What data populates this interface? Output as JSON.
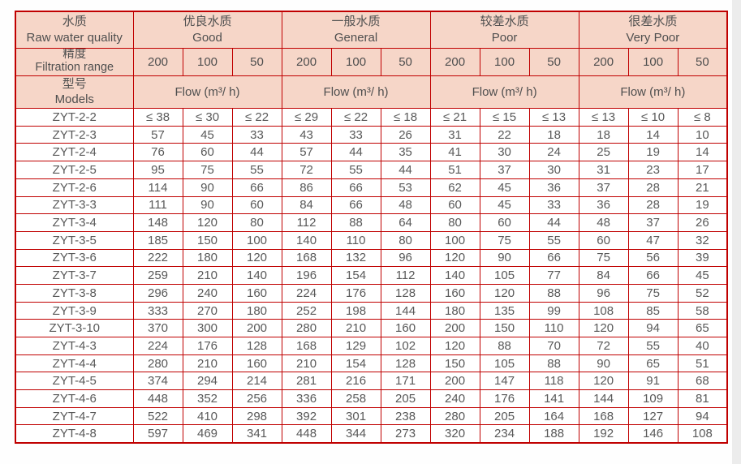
{
  "colors": {
    "border": "#c00000",
    "header_bg": "#f6d6c8",
    "data_text": "#595959",
    "header_text": "#4f4f4f",
    "scrollbar": "#ececec",
    "page_bg": "#fefefe"
  },
  "header": {
    "corner": {
      "row1": {
        "zh": "水质",
        "en": "Raw water quality"
      },
      "row2": {
        "zh": "精度",
        "en": "Filtration range"
      },
      "row3": {
        "zh": "型号",
        "en": "Models"
      }
    },
    "groups": [
      {
        "zh": "优良水质",
        "en": "Good"
      },
      {
        "zh": "一般水质",
        "en": "General"
      },
      {
        "zh": "较差水质",
        "en": "Poor"
      },
      {
        "zh": "很差水质",
        "en": "Very Poor"
      }
    ],
    "filtration_levels": [
      "200",
      "100",
      "50"
    ],
    "flow_label": "Flow (m³/ h)"
  },
  "rows": [
    {
      "model": "ZYT-2-2",
      "values": [
        "≤ 38",
        "≤ 30",
        "≤ 22",
        "≤ 29",
        "≤ 22",
        "≤ 18",
        "≤ 21",
        "≤ 15",
        "≤ 13",
        "≤ 13",
        "≤ 10",
        "≤ 8"
      ]
    },
    {
      "model": "ZYT-2-3",
      "values": [
        "57",
        "45",
        "33",
        "43",
        "33",
        "26",
        "31",
        "22",
        "18",
        "18",
        "14",
        "10"
      ]
    },
    {
      "model": "ZYT-2-4",
      "values": [
        "76",
        "60",
        "44",
        "57",
        "44",
        "35",
        "41",
        "30",
        "24",
        "25",
        "19",
        "14"
      ]
    },
    {
      "model": "ZYT-2-5",
      "values": [
        "95",
        "75",
        "55",
        "72",
        "55",
        "44",
        "51",
        "37",
        "30",
        "31",
        "23",
        "17"
      ]
    },
    {
      "model": "ZYT-2-6",
      "values": [
        "114",
        "90",
        "66",
        "86",
        "66",
        "53",
        "62",
        "45",
        "36",
        "37",
        "28",
        "21"
      ]
    },
    {
      "model": "ZYT-3-3",
      "values": [
        "111",
        "90",
        "60",
        "84",
        "66",
        "48",
        "60",
        "45",
        "33",
        "36",
        "28",
        "19"
      ]
    },
    {
      "model": "ZYT-3-4",
      "values": [
        "148",
        "120",
        "80",
        "112",
        "88",
        "64",
        "80",
        "60",
        "44",
        "48",
        "37",
        "26"
      ]
    },
    {
      "model": "ZYT-3-5",
      "values": [
        "185",
        "150",
        "100",
        "140",
        "110",
        "80",
        "100",
        "75",
        "55",
        "60",
        "47",
        "32"
      ]
    },
    {
      "model": "ZYT-3-6",
      "values": [
        "222",
        "180",
        "120",
        "168",
        "132",
        "96",
        "120",
        "90",
        "66",
        "75",
        "56",
        "39"
      ]
    },
    {
      "model": "ZYT-3-7",
      "values": [
        "259",
        "210",
        "140",
        "196",
        "154",
        "112",
        "140",
        "105",
        "77",
        "84",
        "66",
        "45"
      ]
    },
    {
      "model": "ZYT-3-8",
      "values": [
        "296",
        "240",
        "160",
        "224",
        "176",
        "128",
        "160",
        "120",
        "88",
        "96",
        "75",
        "52"
      ]
    },
    {
      "model": "ZYT-3-9",
      "values": [
        "333",
        "270",
        "180",
        "252",
        "198",
        "144",
        "180",
        "135",
        "99",
        "108",
        "85",
        "58"
      ]
    },
    {
      "model": "ZYT-3-10",
      "values": [
        "370",
        "300",
        "200",
        "280",
        "210",
        "160",
        "200",
        "150",
        "110",
        "120",
        "94",
        "65"
      ]
    },
    {
      "model": "ZYT-4-3",
      "values": [
        "224",
        "176",
        "128",
        "168",
        "129",
        "102",
        "120",
        "88",
        "70",
        "72",
        "55",
        "40"
      ]
    },
    {
      "model": "ZYT-4-4",
      "values": [
        "280",
        "210",
        "160",
        "210",
        "154",
        "128",
        "150",
        "105",
        "88",
        "90",
        "65",
        "51"
      ]
    },
    {
      "model": "ZYT-4-5",
      "values": [
        "374",
        "294",
        "214",
        "281",
        "216",
        "171",
        "200",
        "147",
        "118",
        "120",
        "91",
        "68"
      ]
    },
    {
      "model": "ZYT-4-6",
      "values": [
        "448",
        "352",
        "256",
        "336",
        "258",
        "205",
        "240",
        "176",
        "141",
        "144",
        "109",
        "81"
      ]
    },
    {
      "model": "ZYT-4-7",
      "values": [
        "522",
        "410",
        "298",
        "392",
        "301",
        "238",
        "280",
        "205",
        "164",
        "168",
        "127",
        "94"
      ]
    },
    {
      "model": "ZYT-4-8",
      "values": [
        "597",
        "469",
        "341",
        "448",
        "344",
        "273",
        "320",
        "234",
        "188",
        "192",
        "146",
        "108"
      ]
    }
  ]
}
